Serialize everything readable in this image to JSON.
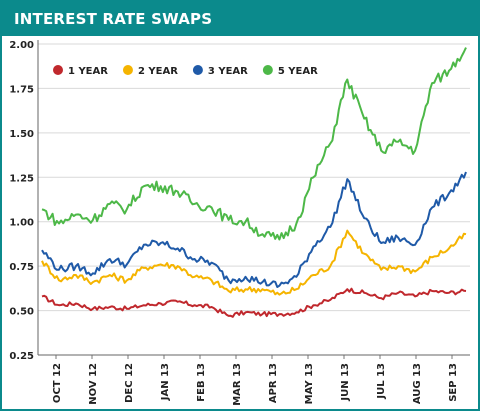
{
  "chart_data": {
    "type": "line",
    "title": "INTEREST RATE SWAPS",
    "xlabel": "",
    "ylabel": "",
    "ylim": [
      0.25,
      2.0
    ],
    "y_ticks": [
      "2.00",
      "1.75",
      "1.50",
      "1.25",
      "1.00",
      "0.75",
      "0.50",
      "0.25"
    ],
    "x_tick_labels": [
      "OCT 12",
      "NOV 12",
      "DEC 12",
      "JAN 13",
      "FEB 13",
      "MAR 13",
      "APR 13",
      "MAY 13",
      "JUN 13",
      "JUL 13",
      "AUG 13",
      "SEP 13"
    ],
    "grid": true,
    "legend_position": "top-left",
    "x": [
      "Oct 1",
      "Oct 15",
      "Nov 1",
      "Nov 15",
      "Dec 1",
      "Dec 15",
      "Jan 1",
      "Jan 15",
      "Feb 1",
      "Feb 15",
      "Mar 1",
      "Mar 15",
      "Apr 1",
      "Apr 15",
      "May 1",
      "May 15",
      "Jun 1",
      "Jun 15",
      "Jun 25",
      "Jul 1",
      "Jul 15",
      "Aug 1",
      "Aug 15",
      "Sep 1",
      "Sep 15",
      "Sep 25"
    ],
    "series": [
      {
        "name": "1 YEAR",
        "color": "#c0282d",
        "values": [
          0.58,
          0.53,
          0.54,
          0.51,
          0.52,
          0.51,
          0.53,
          0.54,
          0.55,
          0.53,
          0.52,
          0.47,
          0.49,
          0.48,
          0.48,
          0.49,
          0.53,
          0.56,
          0.62,
          0.6,
          0.57,
          0.6,
          0.58,
          0.61,
          0.6,
          0.61
        ]
      },
      {
        "name": "2 YEAR",
        "color": "#f5b400",
        "values": [
          0.78,
          0.67,
          0.7,
          0.66,
          0.7,
          0.67,
          0.74,
          0.76,
          0.75,
          0.69,
          0.67,
          0.61,
          0.62,
          0.62,
          0.59,
          0.62,
          0.7,
          0.75,
          0.95,
          0.82,
          0.73,
          0.75,
          0.72,
          0.8,
          0.85,
          0.93
        ]
      },
      {
        "name": "3 YEAR",
        "color": "#1f5aa8",
        "values": [
          0.84,
          0.73,
          0.75,
          0.71,
          0.79,
          0.76,
          0.87,
          0.88,
          0.85,
          0.79,
          0.77,
          0.67,
          0.69,
          0.66,
          0.64,
          0.69,
          0.86,
          0.97,
          1.24,
          1.02,
          0.88,
          0.91,
          0.87,
          1.08,
          1.16,
          1.28
        ]
      },
      {
        "name": "5 YEAR",
        "color": "#4db848",
        "values": [
          1.07,
          0.99,
          1.04,
          1.01,
          1.1,
          1.07,
          1.2,
          1.2,
          1.17,
          1.1,
          1.08,
          1.01,
          1.0,
          0.93,
          0.9,
          0.99,
          1.25,
          1.44,
          1.8,
          1.58,
          1.4,
          1.45,
          1.4,
          1.78,
          1.85,
          1.98
        ]
      }
    ]
  }
}
